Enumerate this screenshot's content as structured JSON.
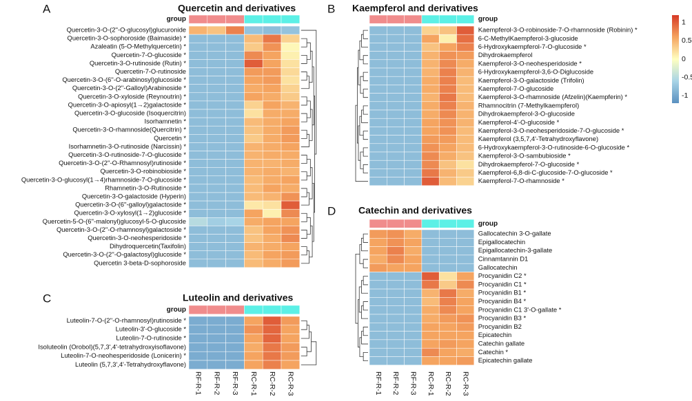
{
  "colors": {
    "RF": "#f08c8c",
    "RC": "#5cf0e6",
    "scale": [
      "#5a90c0",
      "#a8d4e6",
      "#ffffc0",
      "#f5a460",
      "#d63a26"
    ]
  },
  "legend": {
    "ticks": [
      "1",
      "0.5",
      "0",
      "-0.5",
      "-1"
    ],
    "range": [
      -1.2,
      1.2
    ]
  },
  "columns": [
    "RF-R-1",
    "RF-R-2",
    "RF-R-3",
    "RC-R-1",
    "RC-R-2",
    "RC-R-3"
  ],
  "chart_data": [
    {
      "id": "A",
      "type": "heatmap",
      "title": "Quercetin and derivatives",
      "group_label": "group",
      "rows": [
        "Quercetin-3-O-(2''-O-glucosyl)glucuronide",
        "Quercetin-3-O-sophoroside (Baimaside) *",
        "Azaleatin (5-O-Methylquercetin) *",
        "Quercetin-7-O-glucoside *",
        "Quercetin-3-O-rutinoside (Rutin) *",
        "Quercetin-7-O-rutinoside",
        "Quercetin-3-O-(6''-O-arabinosyl)glucoside *",
        "Quercetin-3-O-(2''-Galloyl)Arabinoside *",
        "Quercetin-3-O-xyloside (Reynoutrin) *",
        "Quercetin-3-O-apiosyl(1→2)galactoside *",
        "Quercetin-3-O-glucoside (Isoquercitrin)",
        "Isorhamnetin *",
        "Quercetin-3-O-rhamnoside(Quercitrin) *",
        "Quercetin *",
        "Isorhamnetin-3-O-rutinoside (Narcissin) *",
        "Quercetin-3-O-rutinoside-7-O-glucoside *",
        "Quercetin-3-O-(2''-O-Rhamnosyl)rutinoside *",
        "Quercetin-3-O-robinobioside *",
        "Quercetin-3-O-glucosyl(1→4)rhamnoside-7-O-glucoside *",
        "Rhamnetin-3-O-Rutinoside *",
        "Quercetin-3-O-galactoside (Hyperin)",
        "Quercetin-3-O-(6''-galloyl)galactoside *",
        "Quercetin-3-O-xylosyl(1→2)glucoside *",
        "Quercetin-5-O-(6''-malonyl)glucosyl-5-O-glucoside",
        "Quercetin-3-O-(2''-O-rhamnosyl)galactoside *",
        "Quercetin-3-O-neohesperidoside *",
        "Dihydroquercetin(Taxifolin)",
        "Quercetin-3-O-(2''-O-galactosyl)glucoside *",
        "Quercetin 3-beta-D-sophoroside"
      ],
      "values": [
        [
          0.5,
          0.4,
          0.8,
          -0.75,
          -0.8,
          -0.75
        ],
        [
          -0.8,
          -0.8,
          -0.8,
          0.45,
          0.85,
          0.3
        ],
        [
          -0.8,
          -0.8,
          -0.8,
          0.35,
          0.7,
          0.05
        ],
        [
          -0.8,
          -0.8,
          -0.8,
          0.75,
          0.6,
          0.1
        ],
        [
          -0.8,
          -0.8,
          -0.8,
          1.0,
          0.6,
          0.2
        ],
        [
          -0.8,
          -0.8,
          -0.8,
          0.65,
          0.65,
          0.25
        ],
        [
          -0.8,
          -0.8,
          -0.8,
          0.6,
          0.65,
          0.2
        ],
        [
          -0.8,
          -0.8,
          -0.8,
          0.55,
          0.6,
          0.3
        ],
        [
          -0.8,
          -0.8,
          -0.8,
          0.6,
          0.55,
          0.35
        ],
        [
          -0.8,
          -0.8,
          -0.8,
          0.3,
          0.6,
          0.5
        ],
        [
          -0.8,
          -0.8,
          -0.8,
          0.2,
          0.55,
          0.55
        ],
        [
          -0.8,
          -0.8,
          -0.8,
          0.45,
          0.55,
          0.6
        ],
        [
          -0.8,
          -0.8,
          -0.8,
          0.4,
          0.55,
          0.65
        ],
        [
          -0.8,
          -0.8,
          -0.8,
          0.35,
          0.55,
          0.65
        ],
        [
          -0.8,
          -0.8,
          -0.8,
          0.5,
          0.55,
          0.6
        ],
        [
          -0.8,
          -0.8,
          -0.8,
          0.5,
          0.55,
          0.55
        ],
        [
          -0.8,
          -0.8,
          -0.8,
          0.5,
          0.5,
          0.55
        ],
        [
          -0.8,
          -0.8,
          -0.8,
          0.5,
          0.55,
          0.5
        ],
        [
          -0.8,
          -0.8,
          -0.8,
          0.45,
          0.55,
          0.6
        ],
        [
          -0.8,
          -0.8,
          -0.8,
          0.45,
          0.6,
          0.55
        ],
        [
          -0.8,
          -0.8,
          -0.8,
          0.45,
          0.5,
          0.7
        ],
        [
          -0.8,
          -0.8,
          -0.8,
          0.15,
          0.2,
          1.0
        ],
        [
          -0.8,
          -0.8,
          -0.8,
          0.6,
          0.1,
          0.75
        ],
        [
          -0.5,
          -0.65,
          -0.6,
          0.55,
          0.6,
          0.6
        ],
        [
          -0.8,
          -0.8,
          -0.8,
          0.4,
          0.6,
          0.7
        ],
        [
          -0.8,
          -0.8,
          -0.8,
          0.4,
          0.55,
          0.75
        ],
        [
          -0.8,
          -0.8,
          -0.8,
          0.5,
          0.55,
          0.6
        ],
        [
          -0.8,
          -0.8,
          -0.8,
          0.45,
          0.6,
          0.65
        ],
        [
          -0.8,
          -0.8,
          -0.8,
          0.45,
          0.55,
          0.65
        ]
      ]
    },
    {
      "id": "B",
      "type": "heatmap",
      "title": "Kaempferol and derivatives",
      "group_label": "group",
      "rows": [
        "Kaempferol-3-O-robinoside-7-O-rhamnoside (Robinin) *",
        "6-C-MethylKaempferol-3-glucoside",
        "6-Hydroxykaempferol-7-O-glucoside *",
        "Dihydrokaempferol",
        "Kaempferol-3-O-neohesperidoside *",
        "6-Hydroxykaempferol-3,6-O-Diglucoside",
        "Kaempferol-3-O-galactoside (Trifolin)",
        "Kaempferol-7-O-glucoside",
        "Kaempferol-3-O-rhamnoside (Afzelin)(Kaempferin) *",
        "Rhamnocitrin (7-Methylkaempferol)",
        "Dihydrokaempferol-3-O-glucoside",
        "Kaempferol-4'-O-glucoside *",
        "Kaempferol-3-O-neohesperidoside-7-O-glucoside *",
        "Kaempferol (3,5,7,4'-Tetrahydroxyflavone)",
        "6-Hydroxykaempferol-3-O-rutinoside-6-O-glucoside *",
        "Kaempferol-3-O-sambubioside *",
        "Dihydrokaempferol-7-O-glucoside *",
        "Kaempferol-6,8-di-C-glucoside-7-O-glucoside *",
        "Kaempferol-7-O-rhamnoside *"
      ],
      "values": [
        [
          -0.8,
          -0.8,
          -0.8,
          0.3,
          0.4,
          1.0
        ],
        [
          -0.8,
          -0.8,
          -0.8,
          0.6,
          0.1,
          0.9
        ],
        [
          -0.8,
          -0.8,
          -0.8,
          0.4,
          0.6,
          0.8
        ],
        [
          -0.8,
          -0.8,
          -0.8,
          0.5,
          0.7,
          0.65
        ],
        [
          -0.8,
          -0.8,
          -0.8,
          0.5,
          0.75,
          0.55
        ],
        [
          -0.8,
          -0.8,
          -0.8,
          0.5,
          0.8,
          0.5
        ],
        [
          -0.8,
          -0.8,
          -0.8,
          0.55,
          0.8,
          0.45
        ],
        [
          -0.8,
          -0.8,
          -0.8,
          0.55,
          0.8,
          0.45
        ],
        [
          -0.8,
          -0.8,
          -0.8,
          0.5,
          0.85,
          0.45
        ],
        [
          -0.8,
          -0.8,
          -0.8,
          0.55,
          0.8,
          0.5
        ],
        [
          -0.8,
          -0.8,
          -0.8,
          0.55,
          0.75,
          0.5
        ],
        [
          -0.8,
          -0.8,
          -0.8,
          0.6,
          0.7,
          0.5
        ],
        [
          -0.8,
          -0.8,
          -0.8,
          0.6,
          0.7,
          0.45
        ],
        [
          -0.8,
          -0.8,
          -0.8,
          0.65,
          0.65,
          0.45
        ],
        [
          -0.8,
          -0.8,
          -0.8,
          0.7,
          0.6,
          0.45
        ],
        [
          -0.8,
          -0.8,
          -0.8,
          0.75,
          0.55,
          0.4
        ],
        [
          -0.8,
          -0.8,
          -0.8,
          0.75,
          0.4,
          0.2
        ],
        [
          -0.8,
          -0.8,
          -0.8,
          0.85,
          0.5,
          0.35
        ],
        [
          -0.8,
          -0.8,
          -0.8,
          1.0,
          0.45,
          0.3
        ]
      ]
    },
    {
      "id": "C",
      "type": "heatmap",
      "title": "Luteolin and derivatives",
      "group_label": "group",
      "rows": [
        "Luteolin-7-O-(2''-O-rhamnosyl)rutinoside *",
        "Luteolin-3'-O-glucoside *",
        "Luteolin-7-O-rutinoside *",
        "Isoluteolin (Orobol)(5,7,3',4'-tetrahydroxyisoflavone)",
        "Luteolin-7-O-neohesperidoside (Lonicerin) *",
        "Luteolin (5,7,3',4'-Tetrahydroxyflavone)"
      ],
      "values": [
        [
          -0.95,
          -0.95,
          -0.95,
          0.6,
          1.0,
          0.65
        ],
        [
          -0.95,
          -0.95,
          -0.95,
          0.7,
          0.95,
          0.6
        ],
        [
          -0.95,
          -0.95,
          -0.95,
          0.6,
          0.95,
          0.6
        ],
        [
          -0.95,
          -0.95,
          -0.95,
          0.55,
          0.85,
          0.65
        ],
        [
          -0.95,
          -0.95,
          -0.95,
          0.6,
          0.85,
          0.65
        ],
        [
          -0.95,
          -0.95,
          -0.95,
          0.6,
          0.8,
          0.6
        ]
      ]
    },
    {
      "id": "D",
      "type": "heatmap",
      "title": "Catechin and derivatives",
      "group_label": "group",
      "rows": [
        "Gallocatechin 3-O-gallate",
        "Epigallocatechin",
        "Epigallocatechin-3-gallate",
        "Cinnamtannin D1",
        "Gallocatechin",
        "Procyanidin C2 *",
        "Procyanidin C1 *",
        "Procyanidin B1 *",
        "Procyanidin B4 *",
        "Procyanidin C1 3'-O-gallate *",
        "Procyanidin B3 *",
        "Procyanidin B2",
        "Epicatechin",
        "Catechin gallate",
        "Catechin *",
        "Epicatechin gallate"
      ],
      "values": [
        [
          0.65,
          0.7,
          0.55,
          -0.8,
          -0.8,
          -0.8
        ],
        [
          0.6,
          0.7,
          0.6,
          -0.8,
          -0.8,
          -0.8
        ],
        [
          0.6,
          0.8,
          0.55,
          -0.8,
          -0.8,
          -0.8
        ],
        [
          0.55,
          0.75,
          0.6,
          -0.8,
          -0.8,
          -0.8
        ],
        [
          0.65,
          0.6,
          0.6,
          -0.8,
          -0.8,
          -0.8
        ],
        [
          -0.8,
          -0.8,
          -0.8,
          1.0,
          0.2,
          0.6
        ],
        [
          -0.8,
          -0.8,
          -0.8,
          0.85,
          0.35,
          0.75
        ],
        [
          -0.8,
          -0.8,
          -0.8,
          0.5,
          0.85,
          0.55
        ],
        [
          -0.8,
          -0.8,
          -0.8,
          0.45,
          0.8,
          0.6
        ],
        [
          -0.8,
          -0.8,
          -0.8,
          0.55,
          0.75,
          0.6
        ],
        [
          -0.8,
          -0.8,
          -0.8,
          0.55,
          0.65,
          0.7
        ],
        [
          -0.8,
          -0.8,
          -0.8,
          0.6,
          0.6,
          0.65
        ],
        [
          -0.8,
          -0.8,
          -0.8,
          0.6,
          0.6,
          0.6
        ],
        [
          -0.8,
          -0.8,
          -0.8,
          0.6,
          0.65,
          0.6
        ],
        [
          -0.8,
          -0.8,
          -0.8,
          0.75,
          0.6,
          0.55
        ],
        [
          -0.8,
          -0.8,
          -0.8,
          0.6,
          0.6,
          0.65
        ]
      ]
    }
  ]
}
